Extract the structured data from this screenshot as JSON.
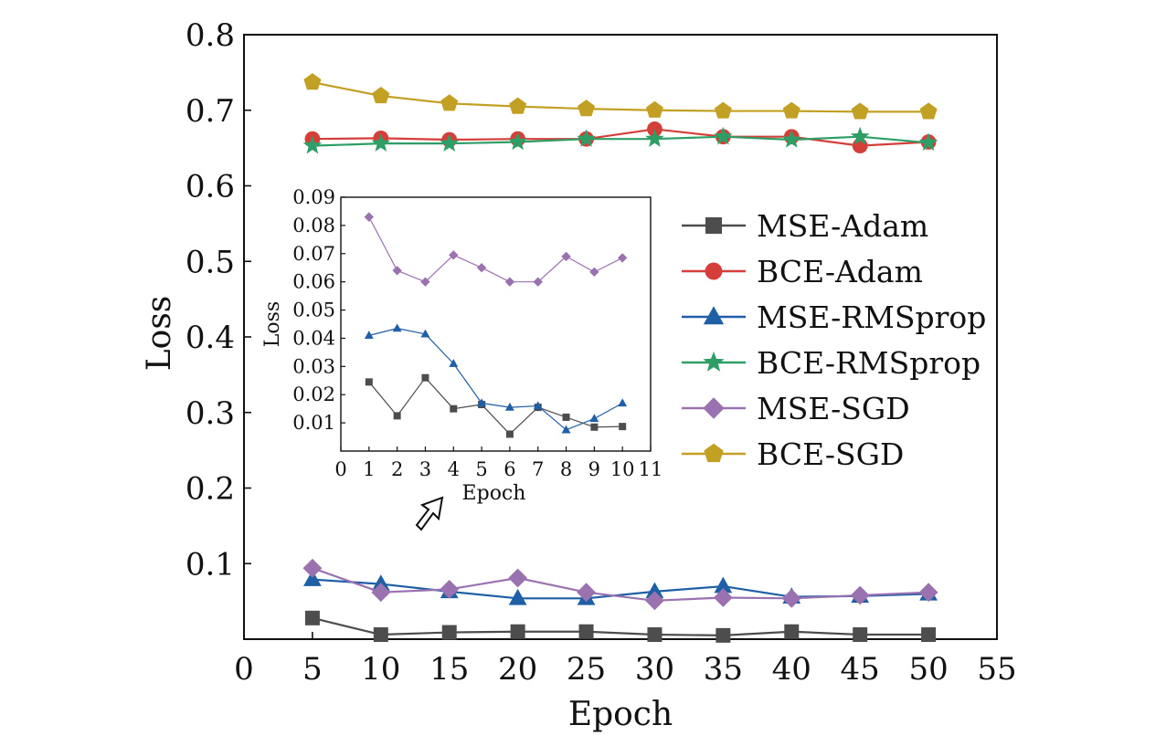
{
  "chart_data": [
    {
      "type": "line",
      "title": "",
      "xlabel": "Epoch",
      "ylabel": "Loss",
      "xlim": [
        0,
        55
      ],
      "ylim": [
        0,
        0.8
      ],
      "xticks": [
        "0",
        "5",
        "10",
        "15",
        "20",
        "25",
        "30",
        "35",
        "40",
        "45",
        "50",
        "55"
      ],
      "yticks": [
        "0.1",
        "0.2",
        "0.3",
        "0.4",
        "0.5",
        "0.6",
        "0.7",
        "0.8"
      ],
      "x": [
        5,
        10,
        15,
        20,
        25,
        30,
        35,
        40,
        45,
        50
      ],
      "legend_position": "right",
      "grid": false,
      "series": [
        {
          "name": "MSE-Adam",
          "color": "#4d4d4d",
          "marker": "square",
          "values": [
            0.028,
            0.006,
            0.009,
            0.01,
            0.01,
            0.006,
            0.005,
            0.01,
            0.006,
            0.006
          ]
        },
        {
          "name": "BCE-Adam",
          "color": "#d43f3a",
          "marker": "circle",
          "values": [
            0.662,
            0.663,
            0.661,
            0.662,
            0.662,
            0.675,
            0.665,
            0.665,
            0.653,
            0.658
          ]
        },
        {
          "name": "MSE-RMSprop",
          "color": "#1f5fa6",
          "marker": "triangle",
          "values": [
            0.079,
            0.073,
            0.063,
            0.054,
            0.054,
            0.063,
            0.07,
            0.056,
            0.057,
            0.06
          ]
        },
        {
          "name": "BCE-RMSprop",
          "color": "#2e9e66",
          "marker": "star",
          "values": [
            0.653,
            0.656,
            0.656,
            0.658,
            0.662,
            0.662,
            0.665,
            0.661,
            0.665,
            0.657
          ]
        },
        {
          "name": "MSE-SGD",
          "color": "#9b72b0",
          "marker": "diamond",
          "values": [
            0.094,
            0.062,
            0.066,
            0.081,
            0.062,
            0.051,
            0.055,
            0.054,
            0.058,
            0.062
          ]
        },
        {
          "name": "BCE-SGD",
          "color": "#c2a024",
          "marker": "pentagon",
          "values": [
            0.737,
            0.719,
            0.709,
            0.705,
            0.702,
            0.7,
            0.699,
            0.699,
            0.698,
            0.698
          ]
        }
      ]
    },
    {
      "type": "line",
      "title": "",
      "xlabel": "Epoch",
      "ylabel": "Loss",
      "xlim": [
        0,
        11
      ],
      "ylim": [
        0,
        0.09
      ],
      "xticks": [
        "0",
        "1",
        "2",
        "3",
        "4",
        "5",
        "6",
        "7",
        "8",
        "9",
        "10",
        "11"
      ],
      "yticks": [
        "0.01",
        "0.02",
        "0.03",
        "0.04",
        "0.05",
        "0.06",
        "0.07",
        "0.08",
        "0.09"
      ],
      "x": [
        1,
        2,
        3,
        4,
        5,
        6,
        7,
        8,
        9,
        10
      ],
      "grid": false,
      "series": [
        {
          "color": "#4d4d4d",
          "marker": "square",
          "values": [
            0.0245,
            0.0125,
            0.026,
            0.015,
            0.0165,
            0.006,
            0.0155,
            0.012,
            0.0085,
            0.0087
          ]
        },
        {
          "color": "#1f5fa6",
          "marker": "triangle",
          "values": [
            0.041,
            0.0435,
            0.0415,
            0.031,
            0.017,
            0.0155,
            0.016,
            0.0075,
            0.0115,
            0.017
          ]
        },
        {
          "color": "#9b72b0",
          "marker": "diamond",
          "values": [
            0.083,
            0.064,
            0.06,
            0.0695,
            0.065,
            0.06,
            0.06,
            0.069,
            0.0635,
            0.0685
          ]
        }
      ]
    }
  ],
  "annotation": {
    "arrow": "up-right-outline-arrow"
  }
}
